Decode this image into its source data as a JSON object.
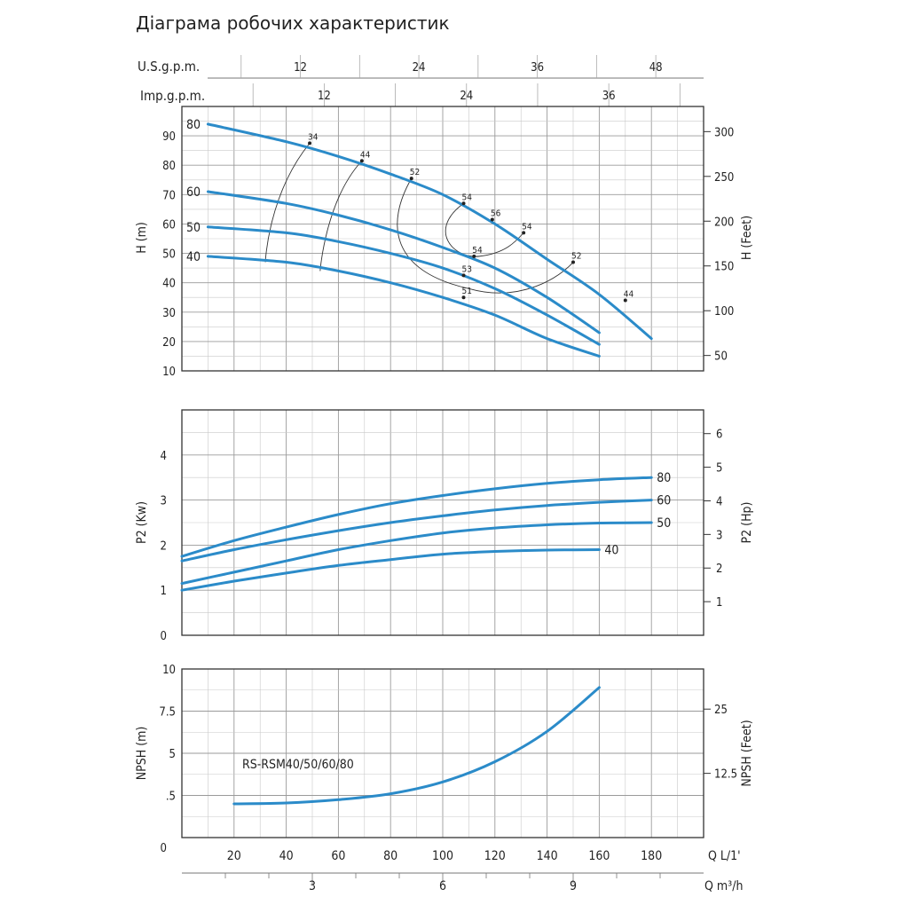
{
  "title": "Діаграма робочих характеристик",
  "colors": {
    "curve": "#2b8bc9",
    "grid": "#b5b5b5",
    "frame": "#333333",
    "text": "#222222"
  },
  "chart_data": [
    {
      "type": "line",
      "id": "head",
      "ylabel": "H (m)",
      "y2label": "H (Feet)",
      "ylim": [
        10,
        100
      ],
      "y_ticks": [
        10,
        20,
        30,
        40,
        50,
        60,
        70,
        80,
        90
      ],
      "y2_ticks": [
        50,
        100,
        150,
        200,
        250,
        300
      ],
      "top_scale_usgpm": {
        "label": "U.S.g.p.m.",
        "ticks": [
          12,
          24,
          36,
          48
        ]
      },
      "top_scale_impgpm": {
        "label": "Imp.g.p.m.",
        "ticks": [
          12,
          24,
          36
        ]
      },
      "series": [
        {
          "name": "80",
          "x": [
            10,
            40,
            60,
            80,
            100,
            120,
            140,
            160,
            180
          ],
          "y": [
            94,
            88,
            83,
            77,
            70,
            60,
            48,
            36,
            21
          ]
        },
        {
          "name": "60",
          "x": [
            10,
            40,
            60,
            80,
            100,
            120,
            140,
            160
          ],
          "y": [
            71,
            67,
            63,
            58,
            52,
            45,
            35,
            23
          ]
        },
        {
          "name": "50",
          "x": [
            10,
            40,
            60,
            80,
            100,
            120,
            140,
            160
          ],
          "y": [
            59,
            57,
            54,
            50,
            45,
            38,
            29,
            19
          ]
        },
        {
          "name": "40",
          "x": [
            10,
            40,
            60,
            80,
            100,
            120,
            140,
            160
          ],
          "y": [
            49,
            47,
            44,
            40,
            35,
            29,
            21,
            15
          ]
        }
      ],
      "efficiency_labels": [
        {
          "text": "34",
          "x": 49,
          "y": 87.5
        },
        {
          "text": "44",
          "x": 69,
          "y": 81.5
        },
        {
          "text": "52",
          "x": 88,
          "y": 75.5
        },
        {
          "text": "54",
          "x": 108,
          "y": 67
        },
        {
          "text": "56",
          "x": 119,
          "y": 61.5
        },
        {
          "text": "54",
          "x": 131,
          "y": 57
        },
        {
          "text": "54",
          "x": 112,
          "y": 49
        },
        {
          "text": "53",
          "x": 108,
          "y": 42.5
        },
        {
          "text": "51",
          "x": 108,
          "y": 35
        },
        {
          "text": "52",
          "x": 150,
          "y": 47
        },
        {
          "text": "44",
          "x": 170,
          "y": 34
        }
      ]
    },
    {
      "type": "line",
      "id": "power",
      "ylabel": "P2 (Kw)",
      "y2label": "P2 (Hp)",
      "ylim": [
        0,
        5
      ],
      "y_ticks": [
        0,
        1,
        2,
        3,
        4
      ],
      "y2_ticks": [
        1,
        2,
        3,
        4,
        5,
        6
      ],
      "series": [
        {
          "name": "80",
          "x": [
            0,
            20,
            40,
            60,
            80,
            100,
            120,
            140,
            160,
            180
          ],
          "y": [
            1.75,
            2.1,
            2.4,
            2.68,
            2.92,
            3.1,
            3.25,
            3.37,
            3.45,
            3.5
          ]
        },
        {
          "name": "60",
          "x": [
            0,
            20,
            40,
            60,
            80,
            100,
            120,
            140,
            160,
            180
          ],
          "y": [
            1.65,
            1.9,
            2.12,
            2.32,
            2.5,
            2.65,
            2.78,
            2.88,
            2.95,
            3.0
          ]
        },
        {
          "name": "50",
          "x": [
            0,
            20,
            40,
            60,
            80,
            100,
            120,
            140,
            160,
            180
          ],
          "y": [
            1.15,
            1.4,
            1.65,
            1.9,
            2.1,
            2.27,
            2.38,
            2.45,
            2.49,
            2.5
          ]
        },
        {
          "name": "40",
          "x": [
            0,
            20,
            40,
            60,
            80,
            100,
            120,
            140,
            160
          ],
          "y": [
            1.0,
            1.2,
            1.38,
            1.55,
            1.68,
            1.8,
            1.86,
            1.89,
            1.9
          ]
        }
      ]
    },
    {
      "type": "line",
      "id": "npsh",
      "ylabel": "NPSH (m)",
      "y2label": "NPSH (Feet)",
      "ylim": [
        0,
        10
      ],
      "y_ticks": [
        0,
        2.5,
        5,
        7.5,
        10
      ],
      "y_tick_labels": [
        ".5",
        "5",
        "7.5",
        "10"
      ],
      "y2_ticks": [
        12.5,
        25
      ],
      "annotation": "RS-RSM40/50/60/80",
      "series": [
        {
          "name": "",
          "x": [
            20,
            40,
            60,
            80,
            100,
            120,
            140,
            160
          ],
          "y": [
            2.0,
            2.05,
            2.25,
            2.6,
            3.3,
            4.5,
            6.3,
            8.9
          ]
        }
      ],
      "x_ticks": [
        0,
        20,
        40,
        60,
        80,
        100,
        120,
        140,
        160,
        180
      ],
      "xlabel": "Q  L/1'",
      "x2_ticks": [
        3,
        6,
        9
      ],
      "x2label": "Q  m³/h"
    }
  ]
}
